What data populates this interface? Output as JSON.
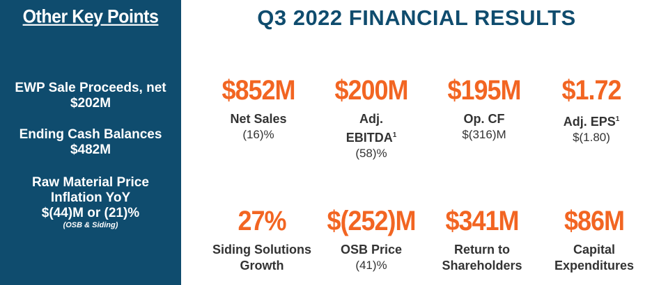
{
  "sidebar": {
    "title": "Other Key Points",
    "points": [
      {
        "line1": "EWP Sale Proceeds, net",
        "line2": "$202M"
      },
      {
        "line1": "Ending Cash Balances",
        "line2": "$482M"
      },
      {
        "line1": "Raw Material Price",
        "line2": "Inflation YoY",
        "line3": "$(44)M or (21)%",
        "note": "(OSB & Siding)"
      }
    ]
  },
  "main": {
    "title": "Q3 2022 FINANCIAL RESULTS",
    "metrics": [
      {
        "value": "$852M",
        "label": "Net Sales",
        "sub": "(16)%"
      },
      {
        "value": "$200M",
        "label": "Adj.",
        "label2": "EBITDA",
        "footnote": "1",
        "sub": "(58)%"
      },
      {
        "value": "$195M",
        "label": "Op. CF",
        "sub": "$(316)M"
      },
      {
        "value": "$1.72",
        "label": "Adj. EPS",
        "footnote": "1",
        "sub": "$(1.80)"
      },
      {
        "value": "27%",
        "label": "Siding Solutions",
        "label2": "Growth"
      },
      {
        "value": "$(252)M",
        "label": "OSB Price",
        "sub": "(41)%"
      },
      {
        "value": "$341M",
        "label": "Return to",
        "label2": "Shareholders"
      },
      {
        "value": "$86M",
        "label": "Capital",
        "label2": "Expenditures"
      }
    ]
  },
  "colors": {
    "sidebar_bg": "#0f4c6e",
    "title": "#0f4c6e",
    "accent": "#f26522",
    "text": "#333333"
  }
}
